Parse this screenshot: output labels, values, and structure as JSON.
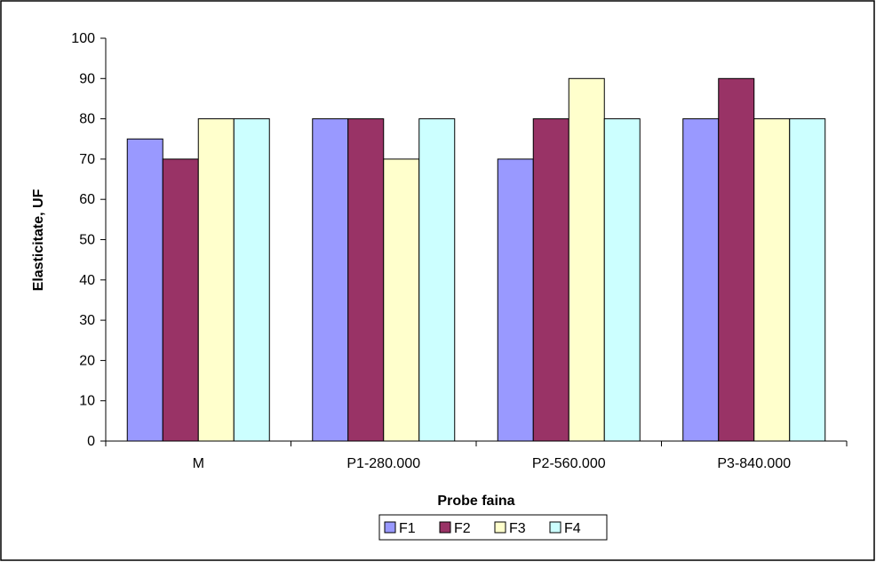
{
  "chart_data": {
    "type": "bar",
    "title": "",
    "xlabel": "Probe faina",
    "ylabel": "Elasticitate, UF",
    "ylim": [
      0,
      100
    ],
    "yticks": [
      0,
      10,
      20,
      30,
      40,
      50,
      60,
      70,
      80,
      90,
      100
    ],
    "grid": false,
    "legend_position": "bottom",
    "categories": [
      "M",
      "P1-280.000",
      "P2-560.000",
      "P3-840.000"
    ],
    "series": [
      {
        "name": "F1",
        "color": "#9999ff",
        "values": [
          75,
          80,
          70,
          80
        ]
      },
      {
        "name": "F2",
        "color": "#993366",
        "values": [
          70,
          80,
          80,
          90
        ]
      },
      {
        "name": "F3",
        "color": "#ffffcc",
        "values": [
          80,
          70,
          90,
          80
        ]
      },
      {
        "name": "F4",
        "color": "#ccffff",
        "values": [
          80,
          80,
          80,
          80
        ]
      }
    ]
  }
}
